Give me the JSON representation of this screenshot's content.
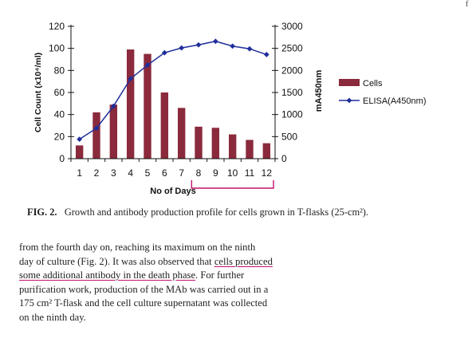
{
  "chart_data": {
    "type": "bar+line",
    "categories": [
      "1",
      "2",
      "3",
      "4",
      "5",
      "6",
      "7",
      "8",
      "9",
      "10",
      "11",
      "12"
    ],
    "series": [
      {
        "name": "Cells",
        "kind": "bar",
        "axis": "left",
        "color": "#8a2a3c",
        "values": [
          12,
          42,
          49,
          99,
          95,
          60,
          46,
          29,
          28,
          22,
          17,
          14
        ]
      },
      {
        "name": "ELISA(A450nm)",
        "kind": "line",
        "axis": "right",
        "color": "#1f2e9a",
        "values": [
          440,
          690,
          1190,
          1810,
          2120,
          2400,
          2510,
          2580,
          2660,
          2550,
          2490,
          2360
        ]
      }
    ],
    "xlabel": "No of Days",
    "ylabel_left": "Cell Count (x10⁴/ml)",
    "ylabel_right": "mA450nm",
    "ylim_left": [
      0,
      120
    ],
    "yticks_left": [
      "0",
      "20",
      "40",
      "60",
      "80",
      "100",
      "120"
    ],
    "ylim_right": [
      0,
      3000
    ],
    "yticks_right": [
      "0",
      "500",
      "1000",
      "1500",
      "2000",
      "2500",
      "3000"
    ],
    "grid": false,
    "legend_position": "right",
    "annotation_bracket_days": [
      "8",
      "12"
    ],
    "annotation_color": "#c0146e"
  },
  "caption": {
    "label": "FIG. 2.",
    "text": "Growth and antibody production profile for cells grown in T-flasks (25-cm²)."
  },
  "body_text": {
    "line1": "from the fourth day on, reaching its maximum on the ninth",
    "line2a": "day of culture (Fig. 2). It was also observed that ",
    "line2b": "cells produced",
    "line3a": "some additional antibody in the death phase",
    "line3b": ". For further",
    "line4": "purification work, production of the MAb was carried out in a",
    "line5": "175 cm² T-flask and the cell culture supernatant was collected",
    "line6": "on the ninth day."
  },
  "corner_mark": "f"
}
